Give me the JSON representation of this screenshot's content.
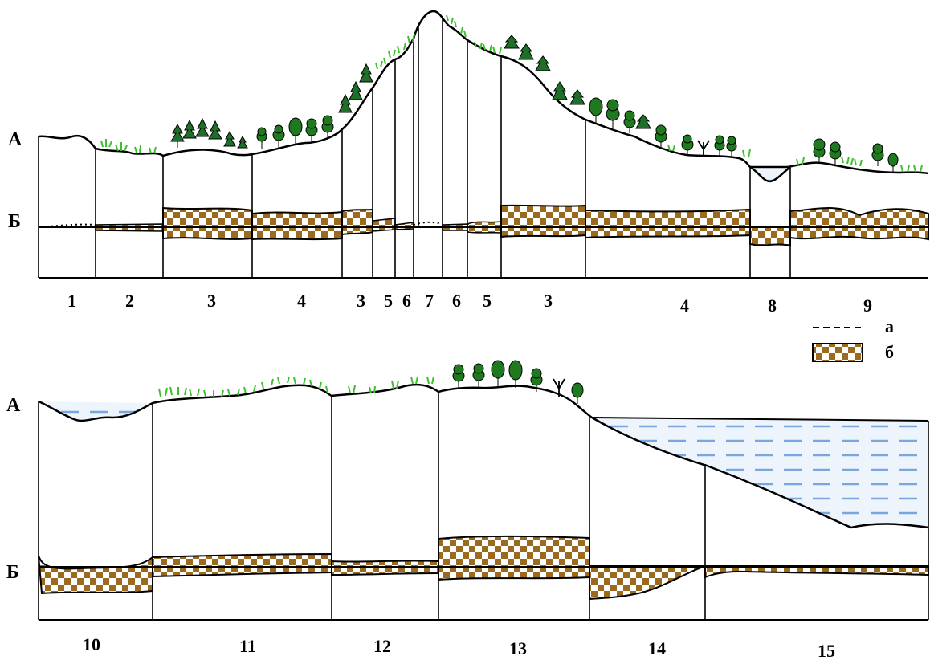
{
  "top_profile": {
    "level_a": "А",
    "level_b": "Б",
    "zones": [
      "1",
      "2",
      "3",
      "4",
      "3",
      "5",
      "6",
      "7",
      "6",
      "5",
      "3",
      "4",
      "8",
      "9"
    ]
  },
  "bottom_profile": {
    "level_a": "А",
    "level_b": "Б",
    "zones": [
      "10",
      "11",
      "12",
      "13",
      "14",
      "15"
    ]
  },
  "legend": {
    "a": "а",
    "b": "б"
  },
  "colors": {
    "ink": "#000000",
    "grass": "#3fbf2f",
    "tree": "#1f7a1f",
    "conifer": "#1f6e2a",
    "water_dash": "#7aa6e0",
    "water_fill": "#eef4fc",
    "checker_dark": "#9a6a1e",
    "checker_light": "#ffffff"
  }
}
